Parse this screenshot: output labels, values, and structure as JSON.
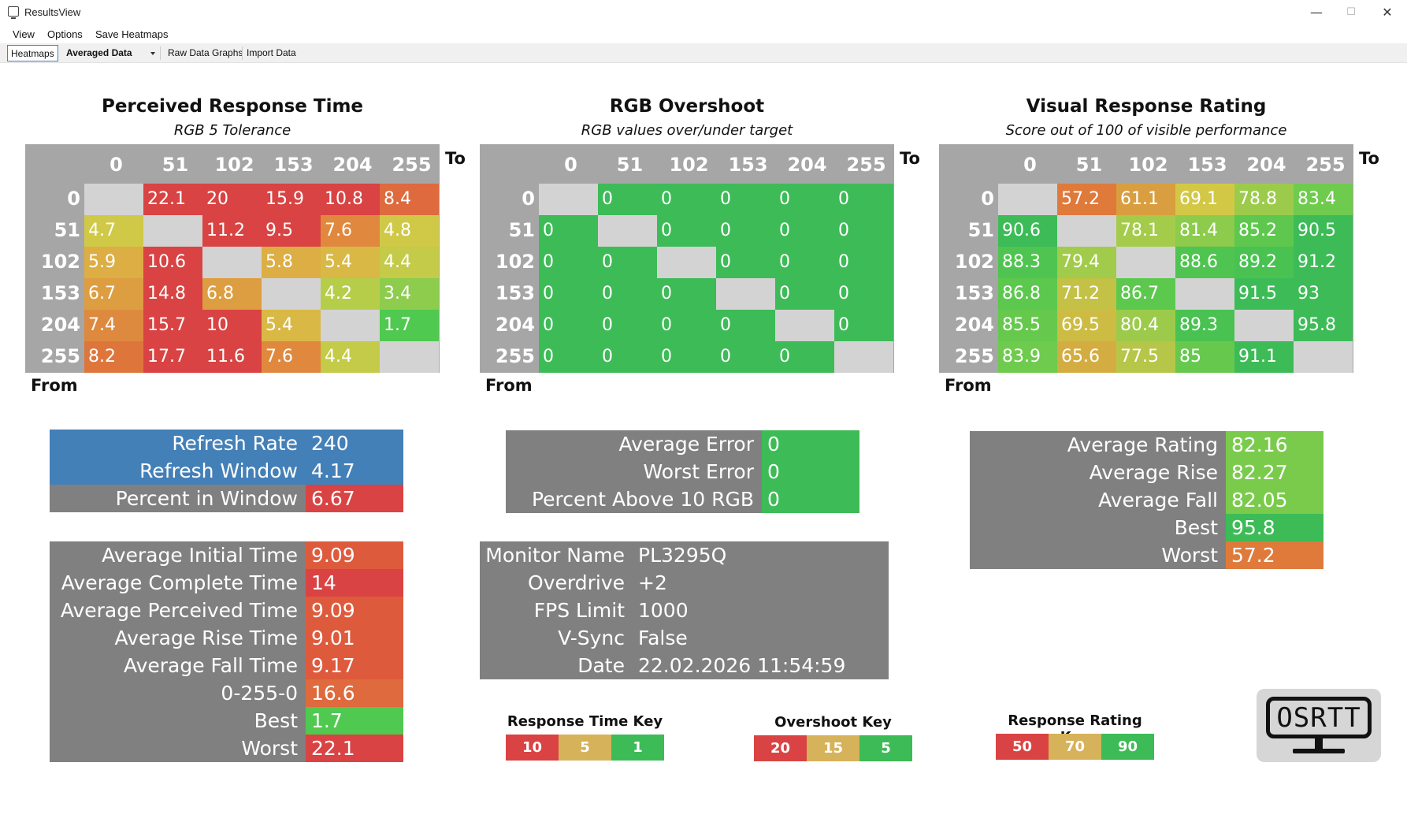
{
  "window": {
    "title": "ResultsView",
    "minimize": "—",
    "maximize": "☐",
    "close": "✕"
  },
  "menu": {
    "view": "View",
    "options": "Options",
    "save_heatmaps": "Save Heatmaps"
  },
  "toolbar": {
    "heatmaps": "Heatmaps",
    "averaged_data": "Averaged Data",
    "raw_data_graphs": "Raw Data Graphs",
    "import_data": "Import Data"
  },
  "heatmaps": [
    {
      "title": "Perceived Response Time",
      "subtitle": "RGB 5 Tolerance",
      "to_label": "To",
      "from_label": "From",
      "columns": [
        "0",
        "51",
        "102",
        "153",
        "204",
        "255"
      ],
      "rows": [
        "0",
        "51",
        "102",
        "153",
        "204",
        "255"
      ],
      "cells": [
        [
          "",
          "22.1",
          "20",
          "15.9",
          "10.8",
          "8.4"
        ],
        [
          "4.7",
          "",
          "11.2",
          "9.5",
          "7.6",
          "4.8"
        ],
        [
          "5.9",
          "10.6",
          "",
          "5.8",
          "5.4",
          "4.4"
        ],
        [
          "6.7",
          "14.8",
          "6.8",
          "",
          "4.2",
          "3.4"
        ],
        [
          "7.4",
          "15.7",
          "10",
          "5.4",
          "",
          "1.7"
        ],
        [
          "8.2",
          "17.7",
          "11.6",
          "7.6",
          "4.4",
          ""
        ]
      ],
      "colors": [
        [
          "#d3d3d3",
          "#d94343",
          "#d94343",
          "#d94343",
          "#d94343",
          "#de6a3d"
        ],
        [
          "#cfc947",
          "#d3d3d3",
          "#d94343",
          "#d94343",
          "#e0893e",
          "#cfc947"
        ],
        [
          "#dcae43",
          "#d94343",
          "#d3d3d3",
          "#dcae43",
          "#d9b845",
          "#c3cb48"
        ],
        [
          "#dd9e41",
          "#d94343",
          "#dd9e41",
          "#d3d3d3",
          "#b6cd4a",
          "#8dcc4d"
        ],
        [
          "#de8a3e",
          "#d94343",
          "#d94343",
          "#d9b845",
          "#d3d3d3",
          "#4fc94f"
        ],
        [
          "#de763c",
          "#d94343",
          "#d94343",
          "#e0893e",
          "#c3cb48",
          "#d3d3d3"
        ]
      ]
    },
    {
      "title": "RGB Overshoot",
      "subtitle": "RGB values over/under target",
      "to_label": "To",
      "from_label": "From",
      "columns": [
        "0",
        "51",
        "102",
        "153",
        "204",
        "255"
      ],
      "rows": [
        "0",
        "51",
        "102",
        "153",
        "204",
        "255"
      ],
      "cells": [
        [
          "",
          "0",
          "0",
          "0",
          "0",
          "0"
        ],
        [
          "0",
          "",
          "0",
          "0",
          "0",
          "0"
        ],
        [
          "0",
          "0",
          "",
          "0",
          "0",
          "0"
        ],
        [
          "0",
          "0",
          "0",
          "",
          "0",
          "0"
        ],
        [
          "0",
          "0",
          "0",
          "0",
          "",
          "0"
        ],
        [
          "0",
          "0",
          "0",
          "0",
          "0",
          ""
        ]
      ],
      "colors": [
        [
          "#d3d3d3",
          "#3dbb57",
          "#3dbb57",
          "#3dbb57",
          "#3dbb57",
          "#3dbb57"
        ],
        [
          "#3dbb57",
          "#d3d3d3",
          "#3dbb57",
          "#3dbb57",
          "#3dbb57",
          "#3dbb57"
        ],
        [
          "#3dbb57",
          "#3dbb57",
          "#d3d3d3",
          "#3dbb57",
          "#3dbb57",
          "#3dbb57"
        ],
        [
          "#3dbb57",
          "#3dbb57",
          "#3dbb57",
          "#d3d3d3",
          "#3dbb57",
          "#3dbb57"
        ],
        [
          "#3dbb57",
          "#3dbb57",
          "#3dbb57",
          "#3dbb57",
          "#d3d3d3",
          "#3dbb57"
        ],
        [
          "#3dbb57",
          "#3dbb57",
          "#3dbb57",
          "#3dbb57",
          "#3dbb57",
          "#d3d3d3"
        ]
      ]
    },
    {
      "title": "Visual Response Rating",
      "subtitle": "Score out of 100 of visible performance",
      "to_label": "To",
      "from_label": "From",
      "columns": [
        "0",
        "51",
        "102",
        "153",
        "204",
        "255"
      ],
      "rows": [
        "0",
        "51",
        "102",
        "153",
        "204",
        "255"
      ],
      "cells": [
        [
          "",
          "57.2",
          "61.1",
          "69.1",
          "78.8",
          "83.4"
        ],
        [
          "90.6",
          "",
          "78.1",
          "81.4",
          "85.2",
          "90.5"
        ],
        [
          "88.3",
          "79.4",
          "",
          "88.6",
          "89.2",
          "91.2"
        ],
        [
          "86.8",
          "71.2",
          "86.7",
          "",
          "91.5",
          "93"
        ],
        [
          "85.5",
          "69.5",
          "80.4",
          "89.3",
          "",
          "95.8"
        ],
        [
          "83.9",
          "65.6",
          "77.5",
          "85",
          "91.1",
          ""
        ]
      ],
      "colors": [
        [
          "#d3d3d3",
          "#df7a3b",
          "#d99e3f",
          "#d3c845",
          "#9ccb4b",
          "#6fcb4d"
        ],
        [
          "#3dbb57",
          "#d3d3d3",
          "#a4cc4a",
          "#8ccb4b",
          "#5ec84e",
          "#3dbb57"
        ],
        [
          "#50c450",
          "#a1cb4a",
          "#d3d3d3",
          "#4fc450",
          "#49c251",
          "#3dbb57"
        ],
        [
          "#5cc84e",
          "#c3c146",
          "#5cc84e",
          "#d3d3d3",
          "#3dbb57",
          "#3dbb57"
        ],
        [
          "#66c94e",
          "#cdbc44",
          "#9ccb4b",
          "#49c251",
          "#d3d3d3",
          "#3dbb57"
        ],
        [
          "#6fcb4d",
          "#d3ad42",
          "#b6c648",
          "#66c94e",
          "#3dbb57",
          "#d3d3d3"
        ]
      ]
    }
  ],
  "refresh_table": {
    "rows": [
      {
        "label": "Refresh Rate",
        "value": "240",
        "label_color": "#4480b8",
        "value_color": "#4480b8"
      },
      {
        "label": "Refresh Window",
        "value": "4.17",
        "label_color": "#4480b8",
        "value_color": "#4480b8"
      },
      {
        "label": "Percent in Window",
        "value": "6.67",
        "label_color": "#808080",
        "value_color": "#d94343"
      }
    ]
  },
  "time_table": {
    "rows": [
      {
        "label": "Average Initial Time",
        "value": "9.09",
        "value_color": "#de5a3c"
      },
      {
        "label": "Average Complete Time",
        "value": "14",
        "value_color": "#d94343"
      },
      {
        "label": "Average Perceived Time",
        "value": "9.09",
        "value_color": "#de5a3c"
      },
      {
        "label": "Average Rise Time",
        "value": "9.01",
        "value_color": "#de5a3c"
      },
      {
        "label": "Average Fall Time",
        "value": "9.17",
        "value_color": "#de5a3c"
      },
      {
        "label": "0-255-0",
        "value": "16.6",
        "value_color": "#de6a3d"
      },
      {
        "label": "Best",
        "value": "1.7",
        "value_color": "#4fc94f"
      },
      {
        "label": "Worst",
        "value": "22.1",
        "value_color": "#d94343"
      }
    ]
  },
  "error_table": {
    "rows": [
      {
        "label": "Average Error",
        "value": "0",
        "value_color": "#3dbb57"
      },
      {
        "label": "Worst Error",
        "value": "0",
        "value_color": "#3dbb57"
      },
      {
        "label": "Percent Above 10 RGB",
        "value": "0",
        "value_color": "#3dbb57"
      }
    ]
  },
  "monitor_table": {
    "rows": [
      {
        "label": "Monitor Name",
        "value": "PL3295Q"
      },
      {
        "label": "Overdrive",
        "value": "+2"
      },
      {
        "label": "FPS Limit",
        "value": "1000"
      },
      {
        "label": "V-Sync",
        "value": "False"
      },
      {
        "label": "Date",
        "value": "22.02.2026 11:54:59"
      }
    ]
  },
  "rating_table": {
    "rows": [
      {
        "label": "Average Rating",
        "value": "82.16",
        "value_color": "#7acb4c"
      },
      {
        "label": "Average Rise",
        "value": "82.27",
        "value_color": "#7acb4c"
      },
      {
        "label": "Average Fall",
        "value": "82.05",
        "value_color": "#7acb4c"
      },
      {
        "label": "Best",
        "value": "95.8",
        "value_color": "#3dbb57"
      },
      {
        "label": "Worst",
        "value": "57.2",
        "value_color": "#df7a3b"
      }
    ]
  },
  "keys": [
    {
      "title": "Response Time Key",
      "values": [
        "10",
        "5",
        "1"
      ],
      "colors": [
        "#d94343",
        "#d6b25a",
        "#3dbb57"
      ]
    },
    {
      "title": "Overshoot Key",
      "values": [
        "20",
        "15",
        "5"
      ],
      "colors": [
        "#d94343",
        "#d6b25a",
        "#3dbb57"
      ]
    },
    {
      "title": "Response Rating Key",
      "values": [
        "50",
        "70",
        "90"
      ],
      "colors": [
        "#d94343",
        "#d6b25a",
        "#3dbb57"
      ]
    }
  ],
  "logo": {
    "text": "OSRTT"
  }
}
